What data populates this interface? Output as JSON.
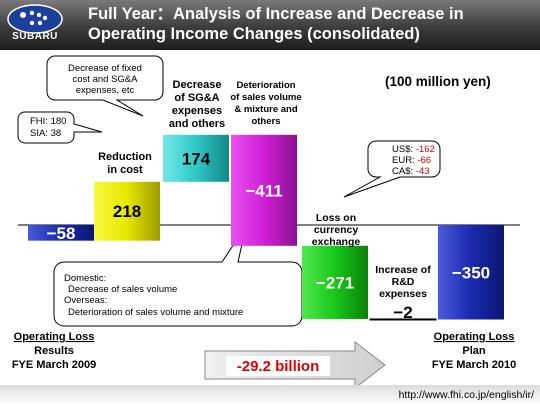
{
  "header": {
    "brand": "SUBARU",
    "title_line1": "Full Year：Analysis of Increase and Decrease in",
    "title_line2": "Operating Income Changes (consolidated)"
  },
  "unit_label": "(100 million yen)",
  "chart_data": {
    "type": "waterfall",
    "baseline": 0,
    "categories": [
      "Operating Loss Results FYE March 2009",
      "Reduction in cost",
      "Decrease of SG&A expenses and others",
      "Deterioration of sales volume & mixture and others",
      "Loss on currency exchange",
      "Increase of R&D expenses",
      "Operating Loss Plan FYE March 2010"
    ],
    "bars": [
      {
        "label": "−58",
        "value": -58,
        "kind": "total",
        "color": "#1a2a9a"
      },
      {
        "label": "218",
        "value": 218,
        "kind": "delta",
        "color": "#e8e800"
      },
      {
        "label": "174",
        "value": 174,
        "kind": "delta",
        "color": "#30c8c8"
      },
      {
        "label": "−411",
        "value": -411,
        "kind": "delta",
        "color": "#d020d8"
      },
      {
        "label": "−271",
        "value": -271,
        "kind": "delta",
        "color": "#18c818"
      },
      {
        "label": "−2",
        "value": -2,
        "kind": "delta",
        "color": "#ffffff"
      },
      {
        "label": "−350",
        "value": -350,
        "kind": "total",
        "color": "#1a2aaa"
      }
    ],
    "bar_labels": {
      "b1": [
        "Reduction",
        "in cost"
      ],
      "b2": [
        "Decrease",
        "of SG&A",
        "expenses",
        "and others"
      ],
      "b3": [
        "Deterioration",
        "of sales volume",
        "& mixture and",
        "others"
      ],
      "b4": [
        "Loss on",
        "currency",
        "exchange"
      ],
      "b5": [
        "Increase of",
        "R&D",
        "expenses"
      ]
    },
    "bottom_labels": {
      "left": [
        "Operating Loss",
        "Results",
        "FYE March 2009"
      ],
      "right": [
        "Operating Loss",
        "Plan",
        "FYE March 2010"
      ]
    },
    "callouts": {
      "fixed_cost": [
        "Decrease of fixed",
        "cost and SG&A",
        "expenses, etc"
      ],
      "fhi": [
        "FHI: 180",
        "SIA: 38"
      ],
      "currency": [
        {
          "name": "US$:",
          "value": "-162"
        },
        {
          "name": "EUR:",
          "value": "-66"
        },
        {
          "name": "CA$:",
          "value": "-43"
        }
      ],
      "domestic": [
        "Domestic:",
        "Decrease of sales volume",
        "Overseas:",
        "Deterioration of sales volume and mixture"
      ]
    },
    "summary": "-29.2 billion",
    "colors": {
      "accent_red": "#e00000"
    }
  },
  "footer": {
    "url": "http://www.fhi.co.jp/english/ir/"
  }
}
